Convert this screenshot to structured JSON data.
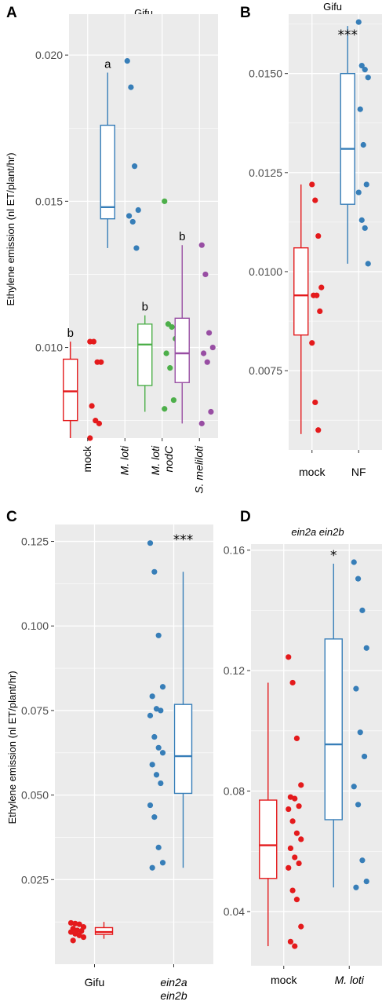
{
  "colors": {
    "red": "#e41a1c",
    "blue": "#377eb8",
    "green": "#4daf4a",
    "purple": "#984ea3",
    "panel_bg": "#ebebeb",
    "grid": "#ffffff"
  },
  "chart_data": [
    {
      "panel": "A",
      "type": "box",
      "title": "Gifu",
      "ylabel": "Ethylene emission (nl ET/plant/hr)",
      "ylim": [
        0.0069,
        0.0214
      ],
      "yticks": [
        0.01,
        0.015,
        0.02
      ],
      "ytick_labels": [
        "0.010",
        "0.015",
        "0.020"
      ],
      "grid": true,
      "categories": [
        {
          "label": [
            "mock"
          ],
          "italic": false,
          "color": "red",
          "letter": "b",
          "box": {
            "min": 0.0069,
            "q1": 0.0075,
            "median": 0.0085,
            "q3": 0.0096,
            "max": 0.0102
          },
          "points": [
            0.0102,
            0.0102,
            0.0095,
            0.0095,
            0.008,
            0.0075,
            0.0074,
            0.0069
          ]
        },
        {
          "label": [
            "M. loti"
          ],
          "italic": true,
          "color": "blue",
          "letter": "a",
          "box": {
            "min": 0.0134,
            "q1": 0.0144,
            "median": 0.0148,
            "q3": 0.0176,
            "max": 0.0194
          },
          "points": [
            0.0198,
            0.0189,
            0.0162,
            0.0147,
            0.0145,
            0.0143,
            0.0134
          ]
        },
        {
          "label": [
            "M. loti",
            "nodC"
          ],
          "italic": true,
          "color": "green",
          "letter": "b",
          "box": {
            "min": 0.0078,
            "q1": 0.0087,
            "median": 0.0101,
            "q3": 0.0108,
            "max": 0.0111
          },
          "points": [
            0.015,
            0.0108,
            0.0107,
            0.0103,
            0.0098,
            0.0093,
            0.0082,
            0.0079
          ]
        },
        {
          "label": [
            "S. meliloti"
          ],
          "italic": true,
          "color": "purple",
          "letter": "b",
          "box": {
            "min": 0.0074,
            "q1": 0.0088,
            "median": 0.0098,
            "q3": 0.011,
            "max": 0.0135
          },
          "points": [
            0.0135,
            0.0125,
            0.0105,
            0.01,
            0.0098,
            0.0095,
            0.0078,
            0.0074
          ]
        }
      ]
    },
    {
      "panel": "B",
      "type": "box",
      "title": "Gifu",
      "ylabel": "",
      "ylim": [
        0.0055,
        0.0165
      ],
      "yticks": [
        0.0075,
        0.01,
        0.0125,
        0.015
      ],
      "ytick_labels": [
        "0.0075",
        "0.0100",
        "0.0125",
        "0.0150"
      ],
      "grid": true,
      "significance": "***",
      "categories": [
        {
          "label": [
            "mock"
          ],
          "italic": false,
          "color": "red",
          "box": {
            "min": 0.0059,
            "q1": 0.0084,
            "median": 0.0094,
            "q3": 0.0106,
            "max": 0.0122
          },
          "points": [
            0.0122,
            0.0118,
            0.0109,
            0.0096,
            0.0094,
            0.0094,
            0.009,
            0.0082,
            0.0067,
            0.006
          ]
        },
        {
          "label": [
            "NF"
          ],
          "italic": false,
          "color": "blue",
          "box": {
            "min": 0.0102,
            "q1": 0.0117,
            "median": 0.0131,
            "q3": 0.015,
            "max": 0.0162
          },
          "points": [
            0.0163,
            0.0152,
            0.0151,
            0.0149,
            0.0141,
            0.0132,
            0.0122,
            0.012,
            0.0113,
            0.0111,
            0.0102
          ]
        }
      ]
    },
    {
      "panel": "C",
      "type": "box",
      "title": "",
      "ylabel": "Ethylene emission (nl ET/plant/hr)",
      "ylim": [
        0.0,
        0.13
      ],
      "yticks": [
        0.025,
        0.05,
        0.075,
        0.1,
        0.125
      ],
      "ytick_labels": [
        "0.025",
        "0.050",
        "0.075",
        "0.100",
        "0.125"
      ],
      "grid": true,
      "significance": "***",
      "categories": [
        {
          "label": [
            "Gifu"
          ],
          "italic": false,
          "color": "red",
          "box": {
            "min": 0.0075,
            "q1": 0.0088,
            "median": 0.0095,
            "q3": 0.0108,
            "max": 0.0125
          },
          "points": [
            0.0122,
            0.012,
            0.0118,
            0.011,
            0.0105,
            0.01,
            0.0098,
            0.0095,
            0.009,
            0.0085,
            0.008,
            0.007
          ]
        },
        {
          "label": [
            "ein2a",
            "ein2b"
          ],
          "italic": true,
          "color": "blue",
          "box": {
            "min": 0.0285,
            "q1": 0.0505,
            "median": 0.0615,
            "q3": 0.0768,
            "max": 0.116
          },
          "points": [
            0.1245,
            0.116,
            0.0972,
            0.082,
            0.0792,
            0.0755,
            0.075,
            0.0735,
            0.0672,
            0.064,
            0.0625,
            0.059,
            0.056,
            0.0535,
            0.047,
            0.0435,
            0.0345,
            0.03,
            0.0285
          ]
        }
      ]
    },
    {
      "panel": "D",
      "type": "box",
      "title": "ein2a ein2b",
      "ylabel": "",
      "ylim": [
        0.022,
        0.162
      ],
      "yticks": [
        0.04,
        0.08,
        0.12,
        0.16
      ],
      "ytick_labels": [
        "0.04",
        "0.08",
        "0.12",
        "0.16"
      ],
      "grid": true,
      "significance": "*",
      "categories": [
        {
          "label": [
            "mock"
          ],
          "italic": false,
          "color": "red",
          "box": {
            "min": 0.0285,
            "q1": 0.051,
            "median": 0.062,
            "q3": 0.077,
            "max": 0.116
          },
          "points": [
            0.1245,
            0.116,
            0.0975,
            0.082,
            0.078,
            0.0775,
            0.075,
            0.074,
            0.07,
            0.066,
            0.064,
            0.061,
            0.058,
            0.056,
            0.0545,
            0.047,
            0.044,
            0.035,
            0.03,
            0.0285
          ]
        },
        {
          "label": [
            "M. loti"
          ],
          "italic": true,
          "color": "blue",
          "box": {
            "min": 0.048,
            "q1": 0.0705,
            "median": 0.0955,
            "q3": 0.1305,
            "max": 0.1555
          },
          "points": [
            0.156,
            0.1505,
            0.14,
            0.1275,
            0.114,
            0.0995,
            0.0915,
            0.0815,
            0.0755,
            0.057,
            0.05,
            0.048
          ]
        }
      ]
    }
  ]
}
